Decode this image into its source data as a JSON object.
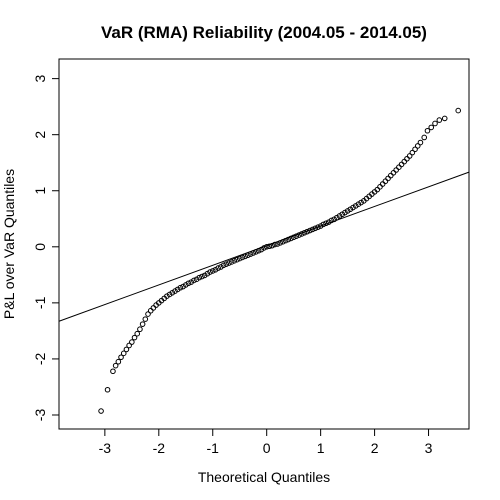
{
  "chart_data": {
    "type": "scatter",
    "title": "VaR (RMA) Reliability (2004.05 - 2014.05)",
    "xlabel": "Theoretical Quantiles",
    "ylabel": "P&L over VaR Quantiles",
    "xlim": [
      -3.85,
      3.75
    ],
    "ylim": [
      -3.25,
      3.35
    ],
    "x_ticks": [
      -3,
      -2,
      -1,
      0,
      1,
      2,
      3
    ],
    "y_ticks": [
      -3,
      -2,
      -1,
      0,
      1,
      2,
      3
    ],
    "grid": false,
    "reference_line": {
      "intercept": 0.02,
      "slope": 0.35
    },
    "points": [
      [
        -3.07,
        -2.93
      ],
      [
        -2.95,
        -2.55
      ],
      [
        -2.85,
        -2.22
      ],
      [
        -2.8,
        -2.12
      ],
      [
        -2.75,
        -2.05
      ],
      [
        -2.7,
        -1.97
      ],
      [
        -2.65,
        -1.9
      ],
      [
        -2.6,
        -1.83
      ],
      [
        -2.55,
        -1.76
      ],
      [
        -2.5,
        -1.7
      ],
      [
        -2.45,
        -1.62
      ],
      [
        -2.4,
        -1.55
      ],
      [
        -2.35,
        -1.47
      ],
      [
        -2.3,
        -1.38
      ],
      [
        -2.25,
        -1.29
      ],
      [
        -2.2,
        -1.2
      ],
      [
        -2.15,
        -1.14
      ],
      [
        -2.1,
        -1.09
      ],
      [
        -2.05,
        -1.04
      ],
      [
        -2.0,
        -1.0
      ],
      [
        -1.95,
        -0.96
      ],
      [
        -1.9,
        -0.92
      ],
      [
        -1.85,
        -0.88
      ],
      [
        -1.8,
        -0.85
      ],
      [
        -1.75,
        -0.82
      ],
      [
        -1.7,
        -0.79
      ],
      [
        -1.65,
        -0.76
      ],
      [
        -1.6,
        -0.73
      ],
      [
        -1.55,
        -0.71
      ],
      [
        -1.5,
        -0.68
      ],
      [
        -1.45,
        -0.65
      ],
      [
        -1.4,
        -0.63
      ],
      [
        -1.35,
        -0.6
      ],
      [
        -1.3,
        -0.58
      ],
      [
        -1.25,
        -0.55
      ],
      [
        -1.2,
        -0.53
      ],
      [
        -1.15,
        -0.51
      ],
      [
        -1.1,
        -0.48
      ],
      [
        -1.05,
        -0.45
      ],
      [
        -1.0,
        -0.43
      ],
      [
        -0.95,
        -0.41
      ],
      [
        -0.9,
        -0.38
      ],
      [
        -0.85,
        -0.36
      ],
      [
        -0.8,
        -0.33
      ],
      [
        -0.75,
        -0.31
      ],
      [
        -0.7,
        -0.29
      ],
      [
        -0.65,
        -0.27
      ],
      [
        -0.6,
        -0.25
      ],
      [
        -0.55,
        -0.23
      ],
      [
        -0.5,
        -0.21
      ],
      [
        -0.45,
        -0.19
      ],
      [
        -0.4,
        -0.17
      ],
      [
        -0.35,
        -0.15
      ],
      [
        -0.3,
        -0.13
      ],
      [
        -0.25,
        -0.11
      ],
      [
        -0.2,
        -0.09
      ],
      [
        -0.15,
        -0.07
      ],
      [
        -0.1,
        -0.05
      ],
      [
        -0.05,
        -0.02
      ],
      [
        0.0,
        0.0
      ],
      [
        0.05,
        0.01
      ],
      [
        0.1,
        0.02
      ],
      [
        0.15,
        0.04
      ],
      [
        0.2,
        0.05
      ],
      [
        0.25,
        0.07
      ],
      [
        0.3,
        0.09
      ],
      [
        0.35,
        0.11
      ],
      [
        0.4,
        0.13
      ],
      [
        0.45,
        0.15
      ],
      [
        0.5,
        0.17
      ],
      [
        0.55,
        0.19
      ],
      [
        0.6,
        0.21
      ],
      [
        0.65,
        0.23
      ],
      [
        0.7,
        0.25
      ],
      [
        0.75,
        0.27
      ],
      [
        0.8,
        0.29
      ],
      [
        0.85,
        0.31
      ],
      [
        0.9,
        0.33
      ],
      [
        0.95,
        0.35
      ],
      [
        1.0,
        0.37
      ],
      [
        1.05,
        0.4
      ],
      [
        1.1,
        0.42
      ],
      [
        1.15,
        0.44
      ],
      [
        1.2,
        0.47
      ],
      [
        1.25,
        0.49
      ],
      [
        1.3,
        0.52
      ],
      [
        1.35,
        0.55
      ],
      [
        1.4,
        0.58
      ],
      [
        1.45,
        0.61
      ],
      [
        1.5,
        0.64
      ],
      [
        1.55,
        0.67
      ],
      [
        1.6,
        0.7
      ],
      [
        1.65,
        0.73
      ],
      [
        1.7,
        0.76
      ],
      [
        1.75,
        0.79
      ],
      [
        1.8,
        0.82
      ],
      [
        1.85,
        0.86
      ],
      [
        1.9,
        0.9
      ],
      [
        1.95,
        0.94
      ],
      [
        2.0,
        0.98
      ],
      [
        2.05,
        1.02
      ],
      [
        2.1,
        1.07
      ],
      [
        2.15,
        1.12
      ],
      [
        2.2,
        1.17
      ],
      [
        2.25,
        1.22
      ],
      [
        2.3,
        1.27
      ],
      [
        2.35,
        1.32
      ],
      [
        2.4,
        1.37
      ],
      [
        2.45,
        1.42
      ],
      [
        2.5,
        1.47
      ],
      [
        2.55,
        1.52
      ],
      [
        2.6,
        1.57
      ],
      [
        2.65,
        1.62
      ],
      [
        2.7,
        1.68
      ],
      [
        2.75,
        1.74
      ],
      [
        2.8,
        1.8
      ],
      [
        2.85,
        1.86
      ],
      [
        2.92,
        1.95
      ],
      [
        2.98,
        2.07
      ],
      [
        3.05,
        2.13
      ],
      [
        3.12,
        2.2
      ],
      [
        3.2,
        2.26
      ],
      [
        3.3,
        2.29
      ],
      [
        3.55,
        2.43
      ]
    ]
  }
}
